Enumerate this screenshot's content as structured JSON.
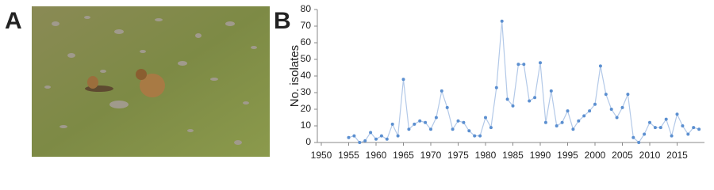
{
  "panel_labels": [
    "A",
    "B"
  ],
  "chart_data": {
    "type": "line",
    "y_label": "No. isolates",
    "x": [
      1955,
      1956,
      1957,
      1958,
      1959,
      1960,
      1961,
      1962,
      1963,
      1964,
      1965,
      1966,
      1967,
      1968,
      1969,
      1970,
      1971,
      1972,
      1973,
      1974,
      1975,
      1976,
      1977,
      1978,
      1979,
      1980,
      1981,
      1982,
      1983,
      1984,
      1985,
      1986,
      1987,
      1988,
      1989,
      1990,
      1991,
      1992,
      1993,
      1994,
      1995,
      1996,
      1997,
      1998,
      1999,
      2000,
      2001,
      2002,
      2003,
      2004,
      2005,
      2006,
      2007,
      2008,
      2009,
      2010,
      2011,
      2012,
      2013,
      2014,
      2015,
      2016,
      2017,
      2018,
      2019
    ],
    "series": [
      {
        "color": "#5b8fd0",
        "line_color": "#b3c9e8",
        "values": [
          3,
          4,
          0,
          1,
          6,
          2,
          4,
          2,
          11,
          4,
          38,
          8,
          11,
          13,
          12,
          8,
          15,
          31,
          21,
          8,
          13,
          12,
          7,
          4,
          4,
          15,
          9,
          33,
          73,
          26,
          22,
          47,
          47,
          25,
          27,
          48,
          12,
          31,
          10,
          12,
          19,
          8,
          13,
          16,
          19,
          23,
          46,
          29,
          20,
          15,
          21,
          29,
          3,
          0,
          5,
          12,
          9,
          9,
          14,
          4,
          17,
          10,
          5,
          9,
          8
        ]
      }
    ],
    "xlim": [
      1950,
      2020
    ],
    "xticks": [
      1950,
      1955,
      1960,
      1965,
      1970,
      1975,
      1980,
      1985,
      1990,
      1995,
      2000,
      2005,
      2010,
      2015
    ],
    "ylim": [
      0,
      80
    ],
    "yticks": [
      0,
      10,
      20,
      30,
      40,
      50,
      60,
      70,
      80
    ],
    "grid": false
  }
}
